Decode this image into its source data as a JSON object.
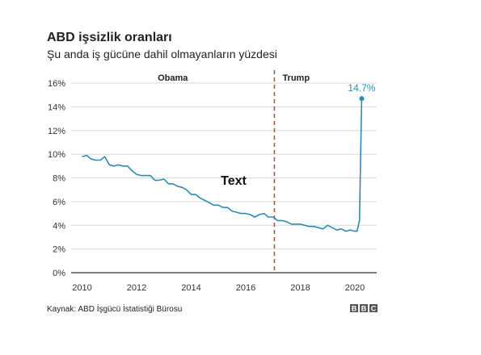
{
  "chart_data": {
    "type": "line",
    "title": "ABD işsizlik oranları",
    "subtitle": "Şu anda iş gücüne dahil olmayanların yüzdesi",
    "source": "Kaynak: ABD İşgücü İstatistiği Bürosu",
    "logo": "BBC",
    "annotation": "Text",
    "x_ticks": [
      "2010",
      "2012",
      "2014",
      "2016",
      "2018",
      "2020"
    ],
    "y_ticks": [
      "0%",
      "2%",
      "4%",
      "6%",
      "8%",
      "10%",
      "12%",
      "14%",
      "16%"
    ],
    "xlim": [
      2009.6,
      2020.8
    ],
    "ylim": [
      0,
      16
    ],
    "grid": true,
    "periods": [
      {
        "label": "Obama",
        "start": 2009.6,
        "end": 2017.05
      },
      {
        "label": "Trump",
        "start": 2017.05,
        "end": 2020.8
      }
    ],
    "divider_x": 2017.05,
    "end_value_label": "14.7%",
    "line_color": "#2f8bb0",
    "divider_color": "#d9373b",
    "x": [
      2010.0,
      2010.17,
      2010.33,
      2010.5,
      2010.67,
      2010.83,
      2011.0,
      2011.17,
      2011.33,
      2011.5,
      2011.67,
      2011.83,
      2012.0,
      2012.17,
      2012.33,
      2012.5,
      2012.67,
      2012.83,
      2013.0,
      2013.17,
      2013.33,
      2013.5,
      2013.67,
      2013.83,
      2014.0,
      2014.17,
      2014.33,
      2014.5,
      2014.67,
      2014.83,
      2015.0,
      2015.17,
      2015.33,
      2015.5,
      2015.67,
      2015.83,
      2016.0,
      2016.17,
      2016.33,
      2016.5,
      2016.67,
      2016.83,
      2017.0,
      2017.17,
      2017.33,
      2017.5,
      2017.67,
      2017.83,
      2018.0,
      2018.17,
      2018.33,
      2018.5,
      2018.67,
      2018.83,
      2019.0,
      2019.17,
      2019.33,
      2019.5,
      2019.67,
      2019.83,
      2020.0,
      2020.08,
      2020.17,
      2020.25
    ],
    "values": [
      9.8,
      9.9,
      9.6,
      9.5,
      9.5,
      9.8,
      9.1,
      9.0,
      9.1,
      9.0,
      9.0,
      8.6,
      8.3,
      8.2,
      8.2,
      8.2,
      7.8,
      7.8,
      7.9,
      7.5,
      7.5,
      7.3,
      7.2,
      7.0,
      6.6,
      6.6,
      6.3,
      6.1,
      5.9,
      5.7,
      5.7,
      5.5,
      5.5,
      5.2,
      5.1,
      5.0,
      5.0,
      4.9,
      4.7,
      4.9,
      5.0,
      4.7,
      4.7,
      4.4,
      4.4,
      4.3,
      4.1,
      4.1,
      4.1,
      4.0,
      3.9,
      3.9,
      3.8,
      3.7,
      4.0,
      3.8,
      3.6,
      3.7,
      3.5,
      3.6,
      3.5,
      3.5,
      4.4,
      14.7
    ]
  }
}
